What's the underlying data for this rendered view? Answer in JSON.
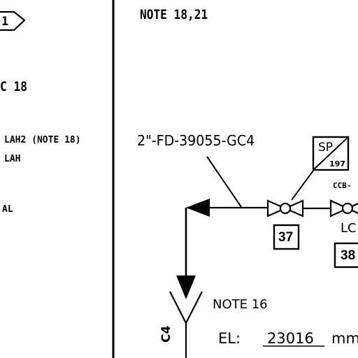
{
  "notes": {
    "top_right": "NOTE 18,21",
    "left_note": "18",
    "left_fragment_prefix": "C",
    "lah2_line": "LAH2 (NOTE 18)",
    "lah_line": "LAH",
    "al_line": "AL",
    "note_16": "NOTE 16"
  },
  "pipe_line": {
    "spec": "2\"-FD-39055-GC4",
    "vertical_fragment": "C4"
  },
  "offpage": {
    "label_fragment": "1"
  },
  "instrument": {
    "top": "SP",
    "bottom": "197"
  },
  "valves": {
    "valve_37_tag": "37",
    "valve_38_tag": "38",
    "ccb_label": "CCB-",
    "lc_label": "LC"
  },
  "elevation": {
    "label": "EL:",
    "value": "23016",
    "unit": "mm"
  }
}
